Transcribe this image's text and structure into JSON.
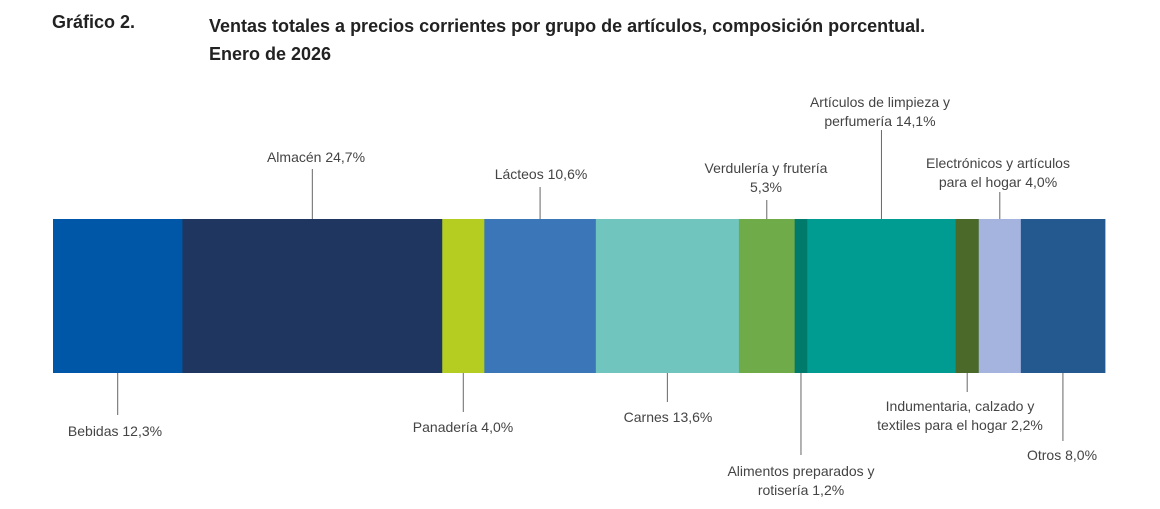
{
  "header": {
    "label": "Gráfico 2.",
    "title_line1": "Ventas totales a precios corrientes por grupo de artículos, composición porcentual.",
    "title_line2": "Enero de 2026"
  },
  "chart_data": {
    "type": "stacked-bar-100",
    "title": "Ventas totales a precios corrientes por grupo de artículos, composición porcentual. Enero de 2026",
    "unit": "%",
    "series": [
      {
        "name": "Bebidas",
        "value": 12.3,
        "color": "#0057a8",
        "label_lines": [
          "Bebidas 12,3%"
        ],
        "label_pos": "below"
      },
      {
        "name": "Almacén",
        "value": 24.7,
        "color": "#1f3760",
        "label_lines": [
          "Almacén 24,7%"
        ],
        "label_pos": "above"
      },
      {
        "name": "Panadería",
        "value": 4.0,
        "color": "#b5cd21",
        "label_lines": [
          "Panadería 4,0%"
        ],
        "label_pos": "below"
      },
      {
        "name": "Lácteos",
        "value": 10.6,
        "color": "#3a76b8",
        "label_lines": [
          "Lácteos 10,6%"
        ],
        "label_pos": "above"
      },
      {
        "name": "Carnes",
        "value": 13.6,
        "color": "#70c5bf",
        "label_lines": [
          "Carnes 13,6%"
        ],
        "label_pos": "below"
      },
      {
        "name": "Verdulería y frutería",
        "value": 5.3,
        "color": "#70ab4a",
        "label_lines": [
          "Verdulería y frutería",
          "5,3%"
        ],
        "label_pos": "above"
      },
      {
        "name": "Alimentos preparados y rotisería",
        "value": 1.2,
        "color": "#007a6b",
        "label_lines": [
          "Alimentos preparados y",
          "rotisería 1,2%"
        ],
        "label_pos": "below"
      },
      {
        "name": "Artículos de limpieza y perfumería",
        "value": 14.1,
        "color": "#009c92",
        "label_lines": [
          "Artículos de limpieza y",
          "perfumería 14,1%"
        ],
        "label_pos": "above"
      },
      {
        "name": "Indumentaria, calzado y textiles para el hogar",
        "value": 2.2,
        "color": "#4b6a2a",
        "label_lines": [
          "Indumentaria, calzado y",
          "textiles para el hogar 2,2%"
        ],
        "label_pos": "below"
      },
      {
        "name": "Electrónicos y artículos para el hogar",
        "value": 4.0,
        "color": "#a5b4de",
        "label_lines": [
          "Electrónicos y artículos",
          "para el hogar 4,0%"
        ],
        "label_pos": "above"
      },
      {
        "name": "Otros",
        "value": 8.0,
        "color": "#23598e",
        "label_lines": [
          "Otros 8,0%"
        ],
        "label_pos": "below"
      }
    ]
  }
}
